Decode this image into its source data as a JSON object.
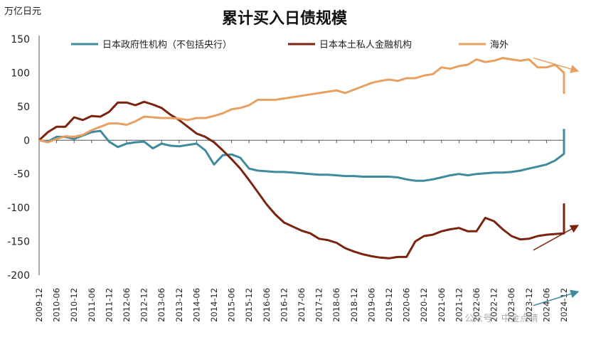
{
  "chart_data": {
    "type": "line",
    "title": "累计买入日债规模",
    "unit_label": "万亿日元",
    "ylim": [
      -200,
      150
    ],
    "yticks": [
      150,
      100,
      50,
      0,
      -50,
      -100,
      -150,
      -200
    ],
    "grid": false,
    "legend_position": "top",
    "x_tick_labels": [
      "2009-12",
      "2010-06",
      "2010-12",
      "2011-06",
      "2011-12",
      "2012-06",
      "2012-12",
      "2013-06",
      "2013-12",
      "2014-06",
      "2014-12",
      "2015-06",
      "2015-12",
      "2016-06",
      "2016-12",
      "2017-06",
      "2017-12",
      "2018-06",
      "2018-12",
      "2019-06",
      "2019-12",
      "2020-06",
      "2020-12",
      "2021-06",
      "2021-12",
      "2022-06",
      "2022-12",
      "2023-06",
      "2023-12",
      "2024-06",
      "2024-12"
    ],
    "x_start": "2009-12",
    "x_step_months": 3,
    "series": [
      {
        "name": "日本政府性机构（不包括央行）",
        "color": "#3f8a9c",
        "values": [
          0,
          -2,
          5,
          5,
          2,
          7,
          12,
          14,
          -2,
          -10,
          -5,
          -3,
          -2,
          -12,
          -5,
          -8,
          -9,
          -7,
          -5,
          -15,
          -36,
          -22,
          -21,
          -26,
          -42,
          -45,
          -46,
          -47,
          -47,
          -48,
          -49,
          -50,
          -51,
          -51,
          -52,
          -53,
          -53,
          -54,
          -54,
          -54,
          -54,
          -55,
          -58,
          -60,
          -60,
          -58,
          -55,
          -52,
          -50,
          -52,
          -50,
          -49,
          -48,
          -48,
          -47,
          -45,
          -42,
          -39,
          -36,
          -30,
          -20,
          5,
          -10,
          2,
          -10,
          17
        ],
        "x_dense_start_index": 59,
        "x_dense_step": 0.2,
        "trend_arrow": {
          "from": [
            -245,
            56.5
          ],
          "to": [
            -225,
            61.5
          ]
        }
      },
      {
        "name": "日本本土私人金融机构",
        "color": "#7a2410",
        "values": [
          0,
          12,
          20,
          20,
          34,
          30,
          36,
          35,
          42,
          56,
          56,
          52,
          57,
          53,
          48,
          38,
          30,
          20,
          10,
          5,
          -3,
          -15,
          -28,
          -42,
          -59,
          -77,
          -95,
          -110,
          -122,
          -128,
          -134,
          -138,
          -146,
          -148,
          -152,
          -160,
          -165,
          -169,
          -172,
          -174,
          -175,
          -173,
          -173,
          -150,
          -142,
          -140,
          -135,
          -132,
          -130,
          -135,
          -135,
          -115,
          -120,
          -132,
          -142,
          -147,
          -146,
          -142,
          -140,
          -139,
          -138,
          -125,
          -100,
          -108,
          -95,
          -115,
          -95,
          -112
        ],
        "x_dense_start_index": 60,
        "x_dense_step": 0.2,
        "trend_arrow": {
          "from": [
            -163,
            56.5
          ],
          "to": [
            -127,
            61.5
          ]
        }
      },
      {
        "name": "海外",
        "color": "#e7a062",
        "values": [
          0,
          -3,
          2,
          6,
          5,
          8,
          15,
          20,
          25,
          25,
          23,
          28,
          35,
          34,
          33,
          33,
          32,
          30,
          33,
          33,
          36,
          40,
          46,
          48,
          52,
          60,
          60,
          60,
          62,
          64,
          66,
          68,
          70,
          72,
          74,
          70,
          75,
          80,
          85,
          88,
          90,
          88,
          92,
          92,
          96,
          98,
          108,
          106,
          110,
          112,
          120,
          116,
          118,
          122,
          120,
          118,
          120,
          108,
          108,
          112,
          100,
          80,
          100,
          70,
          90,
          70,
          92
        ],
        "x_dense_start_index": 60,
        "x_dense_step": 0.2,
        "trend_arrow": {
          "from": [
            122,
            56.5
          ],
          "to": [
            103,
            61.5
          ]
        }
      }
    ]
  },
  "watermark": "公众号 · 中金点睛"
}
